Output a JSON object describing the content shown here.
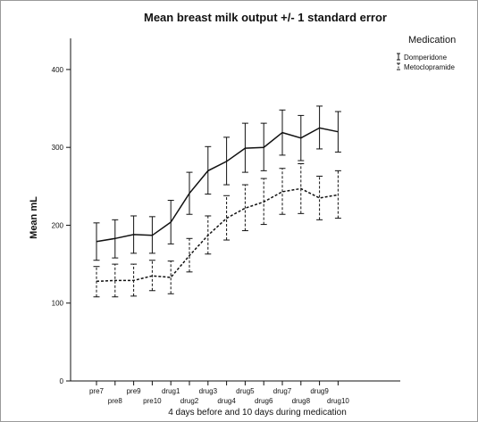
{
  "chart_data": {
    "type": "line",
    "title": "Mean breast milk output +/- 1 standard error",
    "xlabel": "4 days before and 10 days during medication",
    "ylabel": "Mean mL",
    "ylim": [
      0,
      440
    ],
    "yticks": [
      0,
      100,
      200,
      300,
      400
    ],
    "grid": false,
    "legend_position": "top-right",
    "legend_title": "Medication",
    "categories": [
      "pre7",
      "pre8",
      "pre9",
      "pre10",
      "drug1",
      "drug2",
      "drug3",
      "drug4",
      "drug5",
      "drug6",
      "drug7",
      "drug8",
      "drug9",
      "drug10"
    ],
    "series": [
      {
        "name": "Domperidone",
        "line_style": "solid",
        "values": [
          179,
          183,
          188,
          187,
          204,
          241,
          270,
          282,
          299,
          300,
          319,
          312,
          325,
          320
        ],
        "lower": [
          155,
          158,
          164,
          164,
          176,
          214,
          240,
          252,
          268,
          270,
          290,
          283,
          298,
          294
        ],
        "upper": [
          203,
          207,
          212,
          211,
          232,
          268,
          301,
          313,
          331,
          331,
          348,
          341,
          353,
          346
        ]
      },
      {
        "name": "Metoclopramide",
        "line_style": "dashed",
        "values": [
          128,
          129,
          129,
          135,
          133,
          161,
          187,
          209,
          222,
          230,
          243,
          247,
          235,
          239
        ],
        "lower": [
          108,
          108,
          109,
          116,
          112,
          140,
          163,
          181,
          193,
          201,
          214,
          215,
          207,
          209
        ],
        "upper": [
          147,
          150,
          150,
          155,
          154,
          183,
          212,
          238,
          252,
          260,
          273,
          279,
          263,
          270
        ]
      }
    ],
    "colors": {
      "line": "#111111",
      "axis": "#111111",
      "frame": "#9a9a9a"
    }
  }
}
